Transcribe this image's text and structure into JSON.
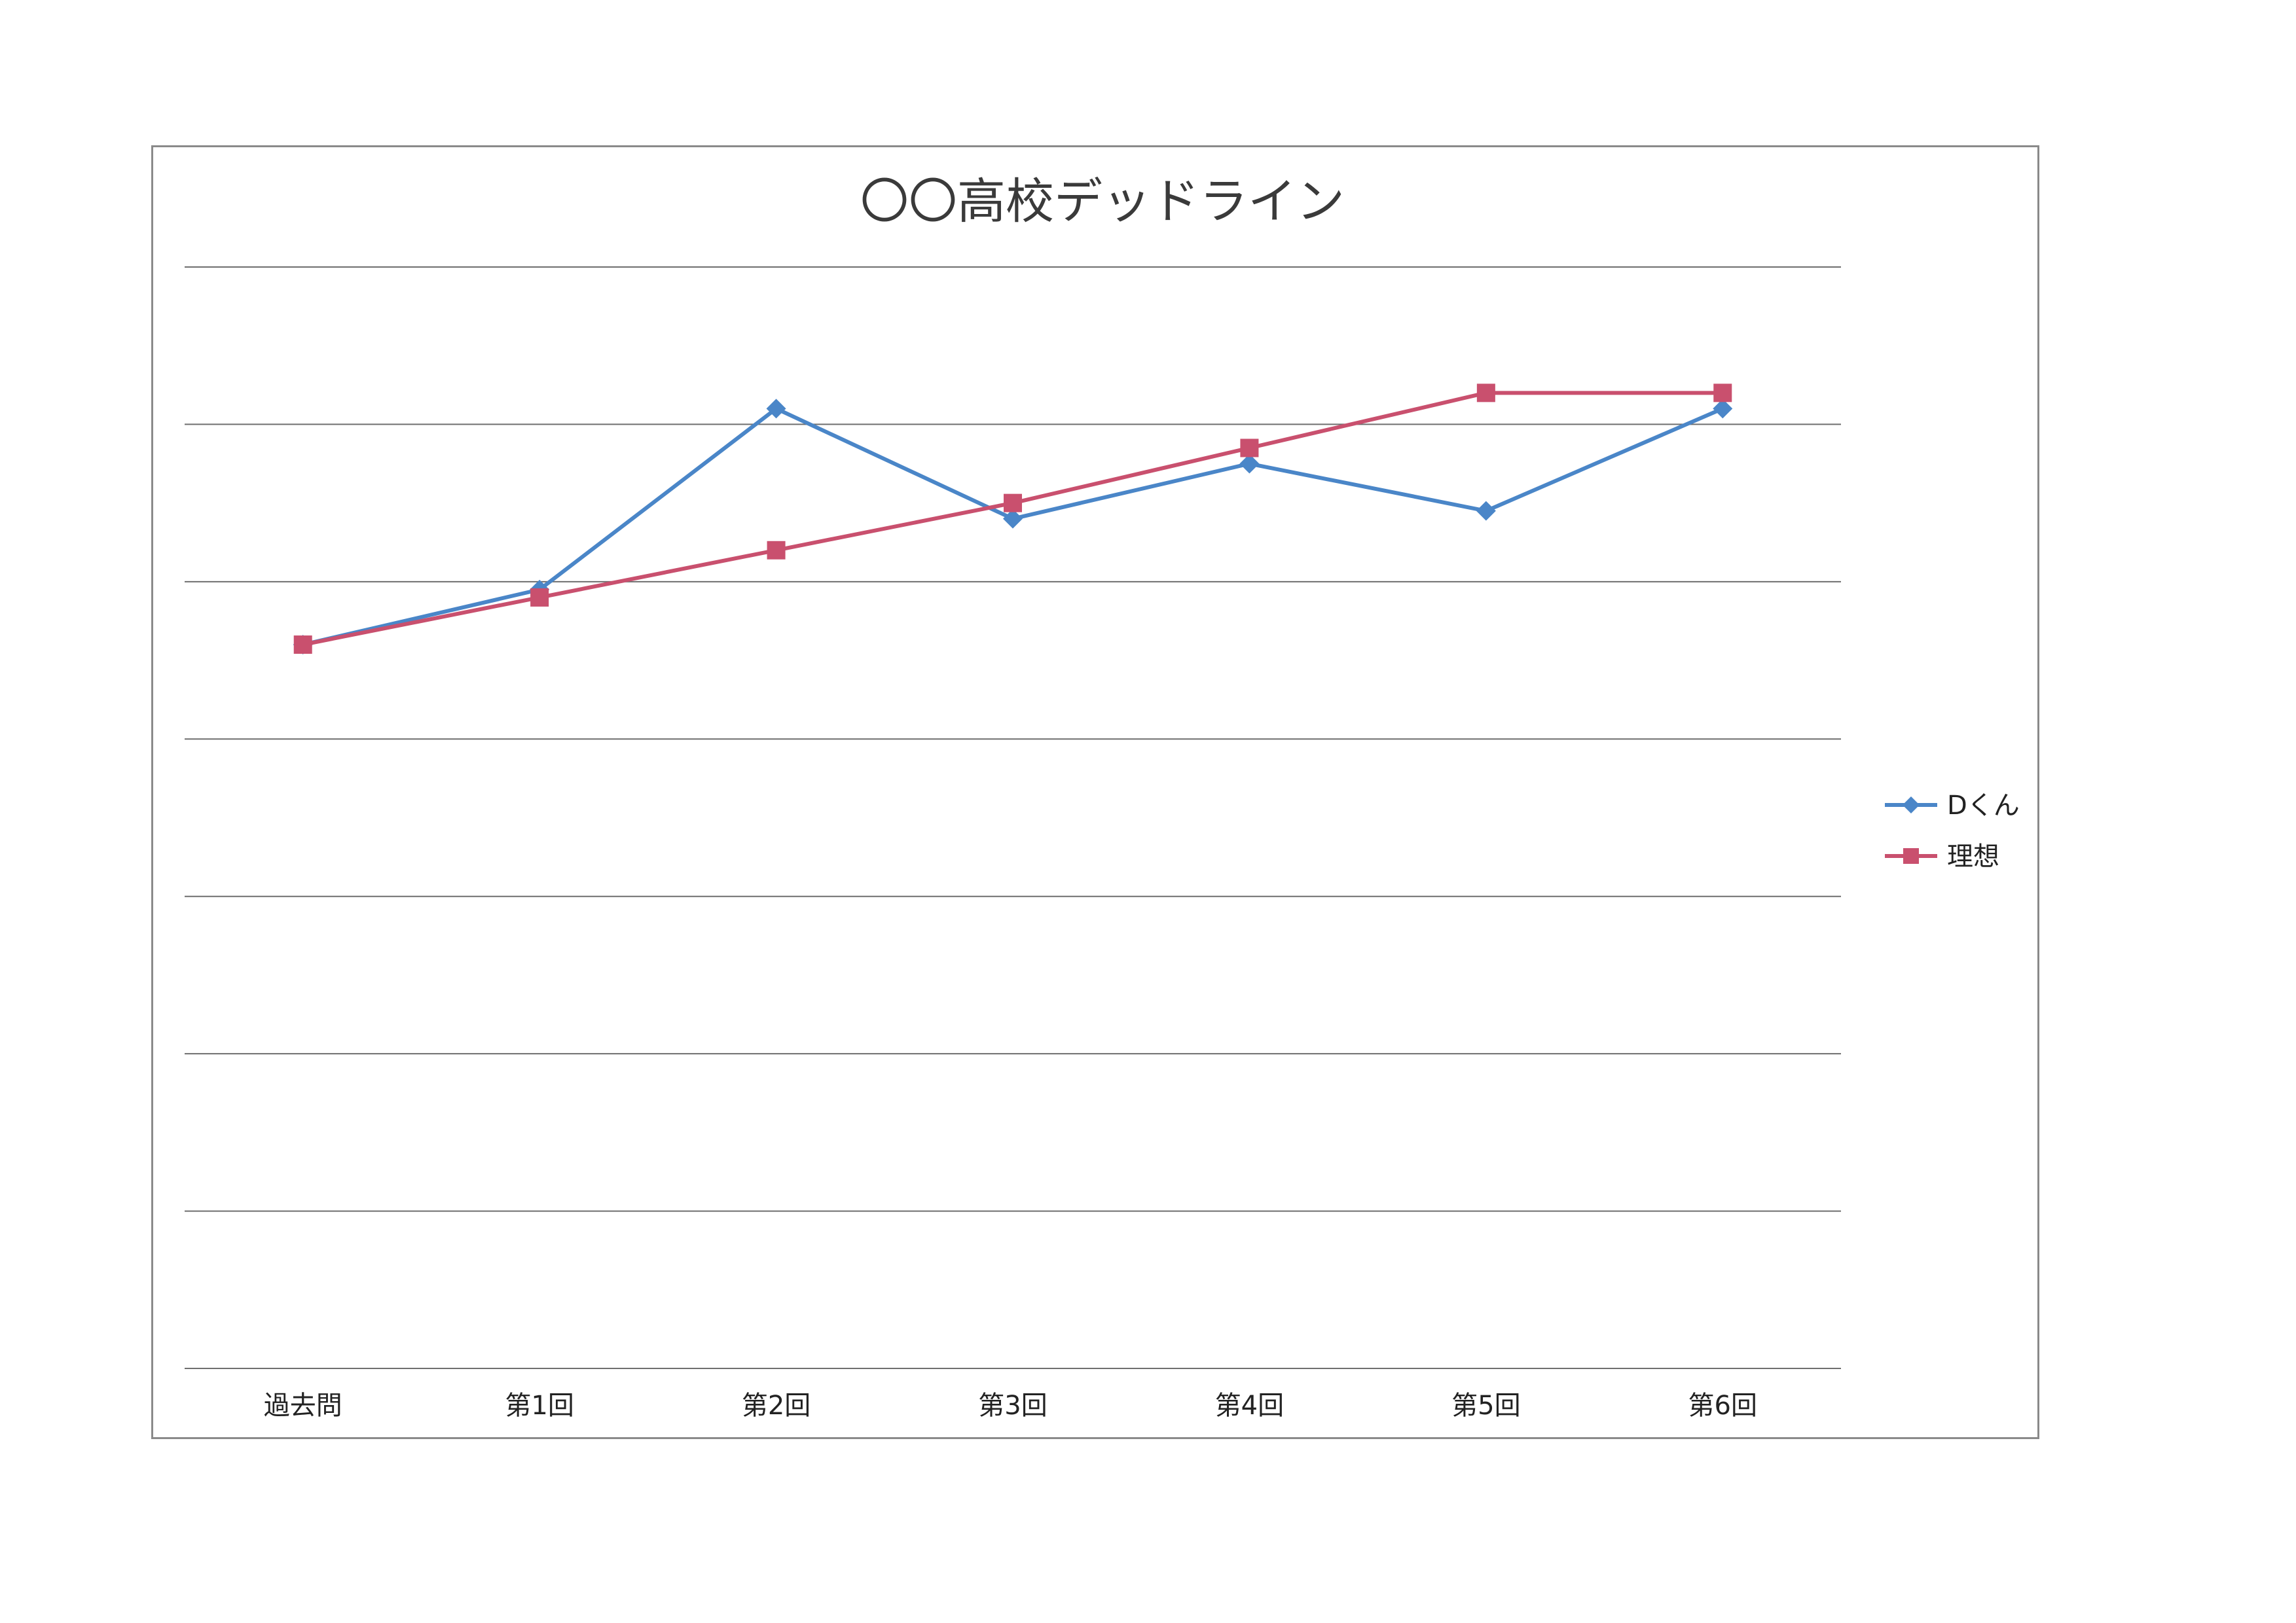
{
  "chart_data": {
    "type": "line",
    "title": "〇〇高校デッドライン",
    "categories": [
      "過去問",
      "第1回",
      "第2回",
      "第3回",
      "第4回",
      "第5回",
      "第6回"
    ],
    "ylim": [
      0,
      7
    ],
    "grid": true,
    "legend_position": "right",
    "series": [
      {
        "name": "Dくん",
        "values": [
          4.6,
          4.95,
          6.1,
          5.4,
          5.75,
          5.45,
          6.1
        ],
        "color": "#4a86c8",
        "marker": "diamond"
      },
      {
        "name": "理想",
        "values": [
          4.6,
          4.9,
          5.2,
          5.5,
          5.85,
          6.2,
          6.2
        ],
        "color": "#c9506e",
        "marker": "square"
      }
    ]
  }
}
